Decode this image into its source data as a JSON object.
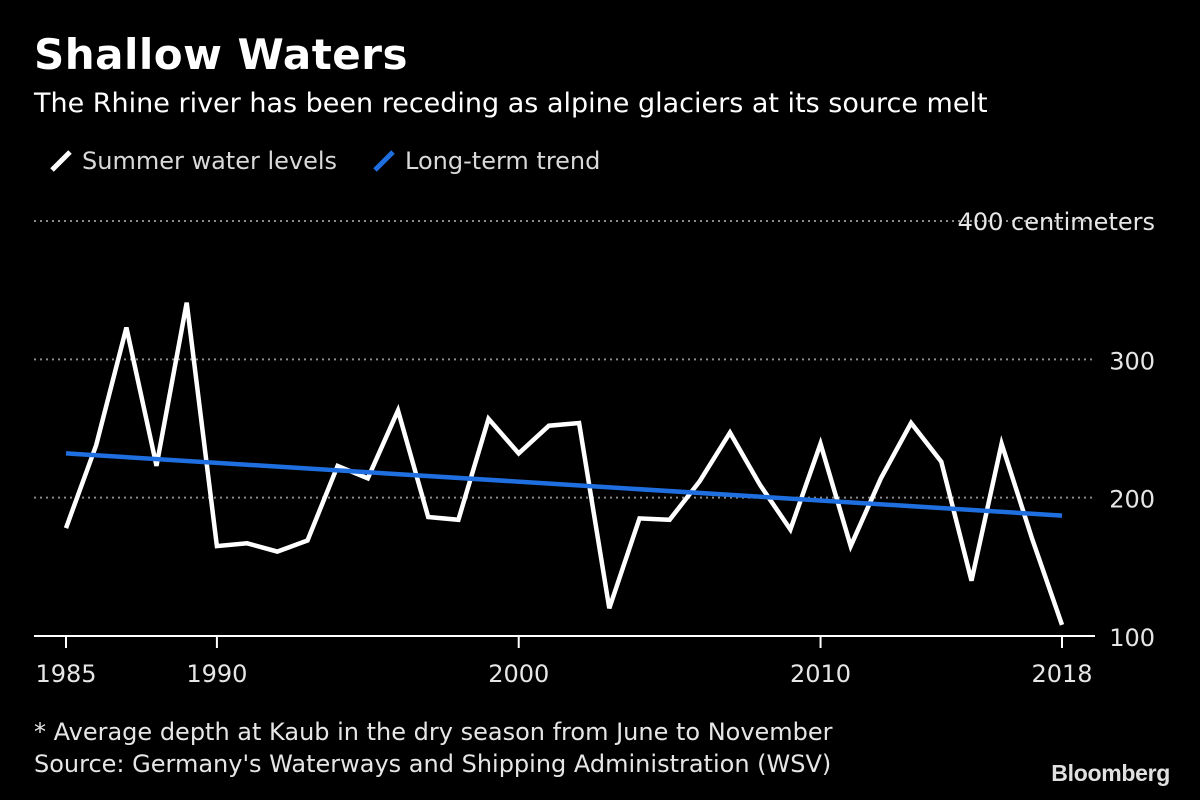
{
  "header": {
    "title": "Shallow Waters",
    "subtitle": "The Rhine river has been receding as alpine glaciers at its source melt"
  },
  "legend": [
    {
      "label": "Summer water levels",
      "color": "#ffffff",
      "icon": "slash-line-icon"
    },
    {
      "label": "Long-term trend",
      "color": "#1f6fe0",
      "icon": "slash-line-icon"
    }
  ],
  "footer": {
    "note": "* Average depth at Kaub in the dry season from June to November",
    "source": "Source: Germany's Waterways and Shipping Administration (WSV)",
    "brand": "Bloomberg"
  },
  "chart_data": {
    "type": "line",
    "title": "Shallow Waters",
    "subtitle": "The Rhine river has been receding as alpine glaciers at its source melt",
    "xlabel": "",
    "ylabel": "",
    "xlim": [
      1985,
      2018
    ],
    "ylim": [
      100,
      400
    ],
    "x_ticks": [
      {
        "value": 1985,
        "label": "1985"
      },
      {
        "value": 1990,
        "label": "1990"
      },
      {
        "value": 2000,
        "label": "2000"
      },
      {
        "value": 2010,
        "label": "2010"
      },
      {
        "value": 2018,
        "label": "2018"
      }
    ],
    "y_ticks": [
      {
        "value": 100,
        "label": "100"
      },
      {
        "value": 200,
        "label": "200"
      },
      {
        "value": 300,
        "label": "300"
      },
      {
        "value": 400,
        "label": "400 centimeters"
      }
    ],
    "grid": "horizontal-dotted",
    "legend_position": "top-left",
    "series": [
      {
        "name": "Summer water levels",
        "color": "#ffffff",
        "x": [
          1985,
          1986,
          1987,
          1988,
          1989,
          1990,
          1991,
          1992,
          1993,
          1994,
          1995,
          1996,
          1997,
          1998,
          1999,
          2000,
          2001,
          2002,
          2003,
          2004,
          2005,
          2006,
          2007,
          2008,
          2009,
          2010,
          2011,
          2012,
          2013,
          2014,
          2015,
          2016,
          2017,
          2018
        ],
        "values": [
          178,
          238,
          323,
          223,
          341,
          165,
          167,
          161,
          169,
          223,
          214,
          263,
          186,
          184,
          257,
          232,
          252,
          254,
          120,
          185,
          184,
          212,
          247,
          209,
          177,
          239,
          165,
          214,
          254,
          226,
          140,
          239,
          171,
          108
        ]
      },
      {
        "name": "Long-term trend",
        "color": "#1f6fe0",
        "x": [
          1985,
          2018
        ],
        "values": [
          232,
          187
        ]
      }
    ]
  }
}
